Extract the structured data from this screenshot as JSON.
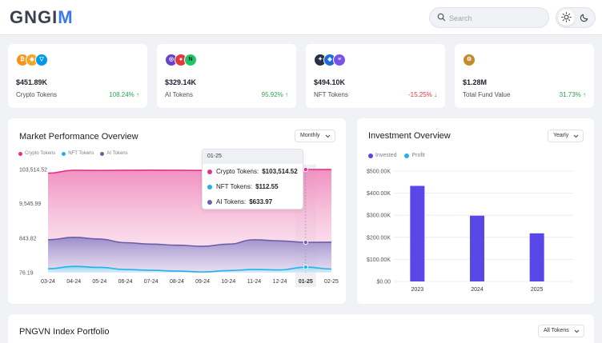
{
  "brand": {
    "prefix": "GNGI",
    "suffix": "M"
  },
  "search": {
    "placeholder": "Search"
  },
  "cards": [
    {
      "value": "$451.89K",
      "label": "Crypto Tokens",
      "change": "108.24%",
      "direction": "up"
    },
    {
      "value": "$329.14K",
      "label": "AI Tokens",
      "change": "95.92%",
      "direction": "up"
    },
    {
      "value": "$494.10K",
      "label": "NFT Tokens",
      "change": "-15.25%",
      "direction": "down"
    },
    {
      "value": "$1.28M",
      "label": "Total Fund Value",
      "change": "31.73%",
      "direction": "up"
    }
  ],
  "colors": {
    "crypto": "#e8308a",
    "nft": "#1fb3ea",
    "ai": "#6a5fa8",
    "invested": "#5a47e8",
    "profit": "#1fb3ea",
    "positive": "#2aa54d",
    "negative": "#e5343d",
    "brand_accent": "#3a78f2"
  },
  "market": {
    "title": "Market Performance Overview",
    "period": "Monthly",
    "legend": [
      "Crypto Tokens",
      "NFT Tokens",
      "AI Tokens"
    ],
    "tooltip": {
      "header": "01-25",
      "rows": [
        {
          "label": "Crypto Tokens:",
          "value": "$103,514.52"
        },
        {
          "label": "NFT Tokens:",
          "value": "$112.55"
        },
        {
          "label": "AI Tokens:",
          "value": "$633.97"
        }
      ]
    }
  },
  "investment": {
    "title": "Investment Overview",
    "period": "Yearly",
    "legend": [
      "Invested",
      "Profit"
    ]
  },
  "portfolio": {
    "title": "PNGVN Index Portfolio",
    "filter": "All Tokens"
  },
  "chart_data": [
    {
      "type": "area",
      "title": "Market Performance Overview",
      "x": [
        "03-24",
        "04-24",
        "05-24",
        "06-24",
        "07-24",
        "08-24",
        "09-24",
        "10-24",
        "11-24",
        "12-24",
        "01-25",
        "02-25"
      ],
      "y_ticks": [
        "103,514.52",
        "9,545.99",
        "843.82",
        "76.19"
      ],
      "y_scale": "log",
      "ylim": [
        76.19,
        103514.52
      ],
      "highlighted_x": "01-25",
      "legend_position": "top-left",
      "series": [
        {
          "name": "Crypto Tokens",
          "values": [
            80000,
            98000,
            97000,
            98000,
            99000,
            98000,
            97000,
            97000,
            98000,
            100000,
            103514.52,
            103000
          ]
        },
        {
          "name": "AI Tokens",
          "values": [
            760,
            900,
            800,
            620,
            560,
            520,
            480,
            560,
            760,
            700,
            633.97,
            640
          ]
        },
        {
          "name": "NFT Tokens",
          "values": [
            100,
            118,
            110,
            95,
            90,
            85,
            80,
            88,
            95,
            92,
            112.55,
            98
          ]
        }
      ]
    },
    {
      "type": "bar",
      "title": "Investment Overview",
      "categories": [
        "2023",
        "2024",
        "2025"
      ],
      "y_ticks": [
        "$500.00K",
        "$400.00K",
        "$300.00K",
        "$200.00K",
        "$100.00K",
        "$0.00"
      ],
      "ylim": [
        0,
        500000
      ],
      "legend_position": "top-left",
      "series": [
        {
          "name": "Invested",
          "values": [
            433000,
            298000,
            218000
          ]
        }
      ]
    }
  ]
}
